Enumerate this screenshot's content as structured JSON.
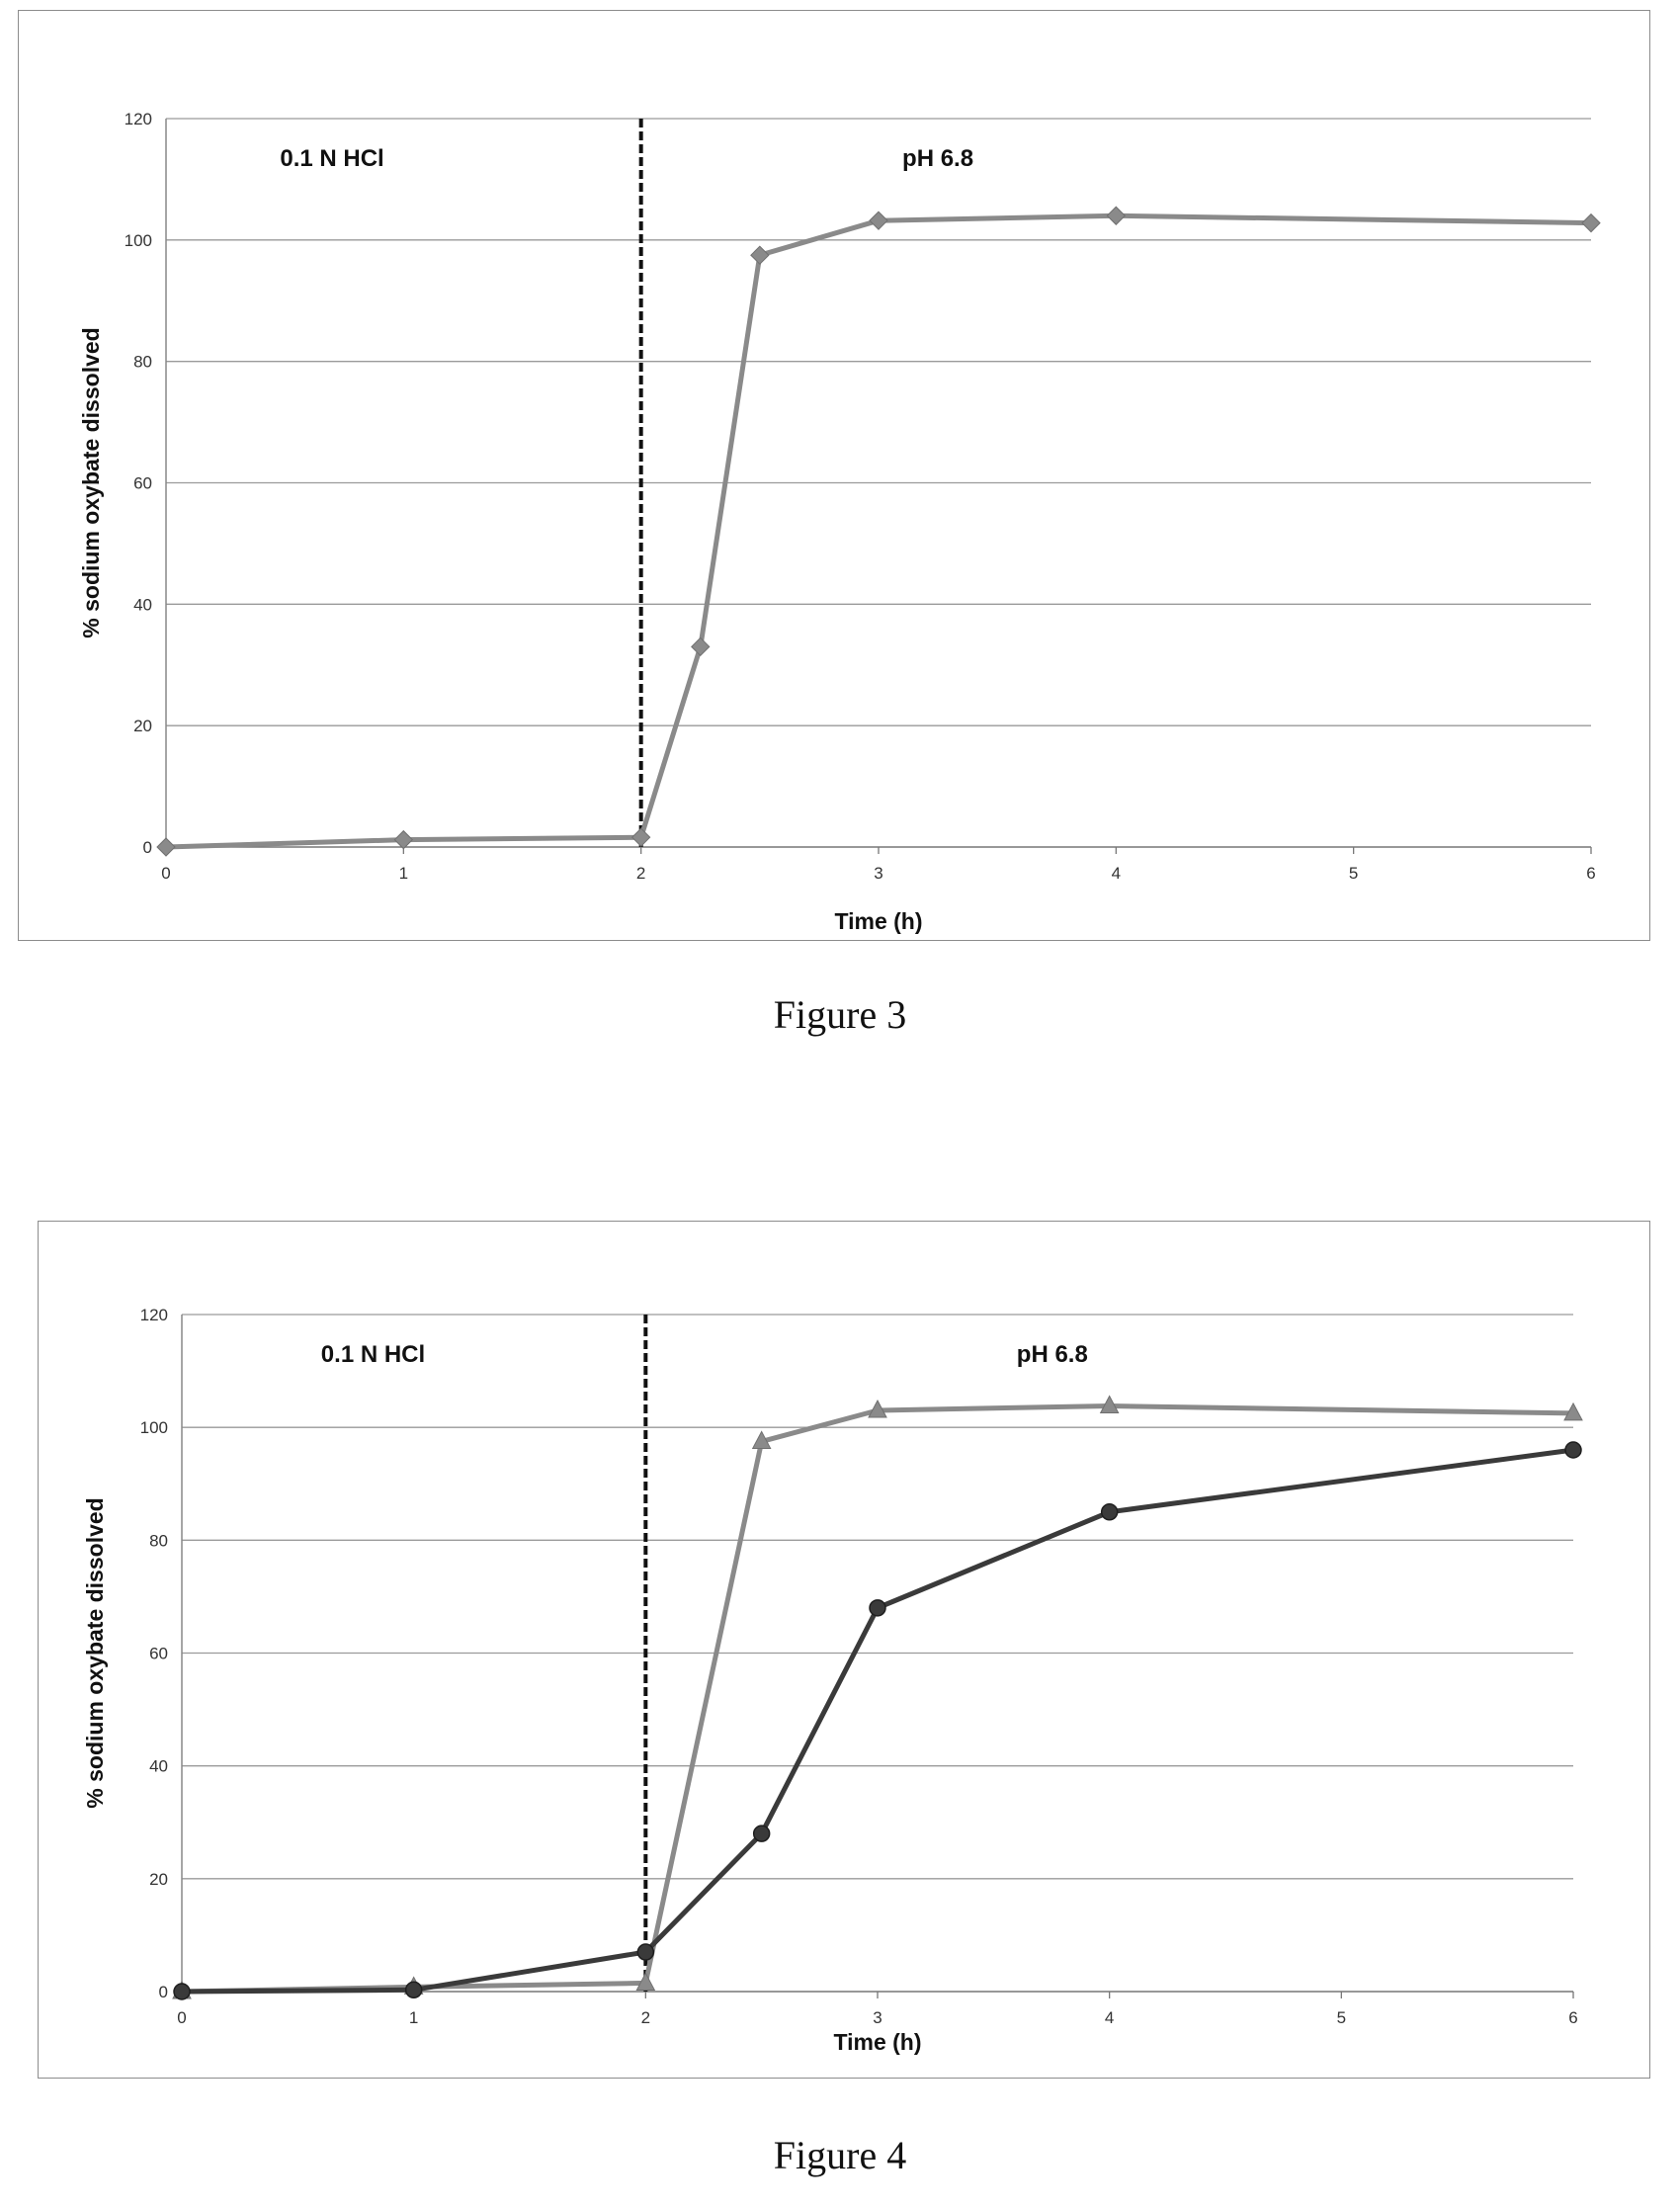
{
  "chart_data": [
    {
      "type": "line",
      "figure_caption": "Figure 3",
      "xlabel": "Time (h)",
      "ylabel": "% sodium oxybate dissolved",
      "xlim": [
        0,
        6
      ],
      "ylim": [
        0,
        120
      ],
      "x_ticks": [
        0,
        1,
        2,
        3,
        4,
        5,
        6
      ],
      "y_ticks": [
        0,
        20,
        40,
        60,
        80,
        100,
        120
      ],
      "grid": "horizontal",
      "legend": "none",
      "annotations": [
        {
          "text": "0.1 N HCl",
          "region": "acid phase"
        },
        {
          "text": "pH 6.8",
          "region": "buffer phase"
        }
      ],
      "phase_change_x": 2,
      "series": [
        {
          "marker": "diamond",
          "color": "#8a8a8a",
          "x": [
            0,
            1,
            2,
            2.25,
            2.5,
            3,
            4,
            6
          ],
          "y": [
            0,
            1.2,
            1.6,
            33,
            97.5,
            103.2,
            104,
            102.8
          ]
        }
      ]
    },
    {
      "type": "line",
      "figure_caption": "Figure 4",
      "xlabel": "Time (h)",
      "ylabel": "% sodium oxybate dissolved",
      "xlim": [
        0,
        6
      ],
      "ylim": [
        0,
        120
      ],
      "x_ticks": [
        0,
        1,
        2,
        3,
        4,
        5,
        6
      ],
      "y_ticks": [
        0,
        20,
        40,
        60,
        80,
        100,
        120
      ],
      "grid": "horizontal",
      "legend": "none",
      "annotations": [
        {
          "text": "0.1 N HCl",
          "region": "acid phase"
        },
        {
          "text": "pH 6.8",
          "region": "buffer phase"
        }
      ],
      "phase_change_x": 2,
      "series": [
        {
          "marker": "triangle",
          "color": "#8a8a8a",
          "x": [
            0,
            1,
            2,
            2.5,
            3,
            4,
            6
          ],
          "y": [
            0,
            0.8,
            1.5,
            97.5,
            103,
            103.8,
            102.5
          ]
        },
        {
          "marker": "circle",
          "color": "#3a3a3a",
          "x": [
            0,
            1,
            2,
            2.5,
            3,
            4,
            6
          ],
          "y": [
            0,
            0.3,
            7,
            28,
            68,
            85,
            96
          ]
        }
      ]
    }
  ]
}
